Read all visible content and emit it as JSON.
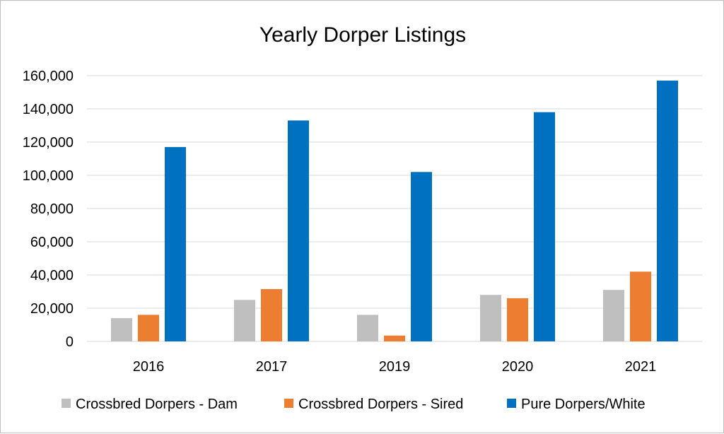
{
  "chart_data": {
    "type": "bar",
    "title": "Yearly Dorper Listings",
    "xlabel": "",
    "ylabel": "",
    "categories": [
      "2016",
      "2017",
      "2019",
      "2020",
      "2021"
    ],
    "ylim": [
      0,
      160000
    ],
    "yticks": [
      0,
      20000,
      40000,
      60000,
      80000,
      100000,
      120000,
      140000,
      160000
    ],
    "ytick_labels": [
      "0",
      "20,000",
      "40,000",
      "60,000",
      "80,000",
      "100,000",
      "120,000",
      "140,000",
      "160,000"
    ],
    "grid": true,
    "legend_position": "bottom",
    "series": [
      {
        "name": "Crossbred Dorpers - Dam",
        "color": "#bfbfbf",
        "values": [
          14000,
          25000,
          16000,
          28000,
          31000
        ]
      },
      {
        "name": "Crossbred Dorpers - Sired",
        "color": "#ed7d31",
        "values": [
          16000,
          31500,
          3500,
          26000,
          42000
        ]
      },
      {
        "name": "Pure Dorpers/White",
        "color": "#0070c0",
        "values": [
          117000,
          133000,
          102000,
          138000,
          157000
        ]
      }
    ]
  }
}
